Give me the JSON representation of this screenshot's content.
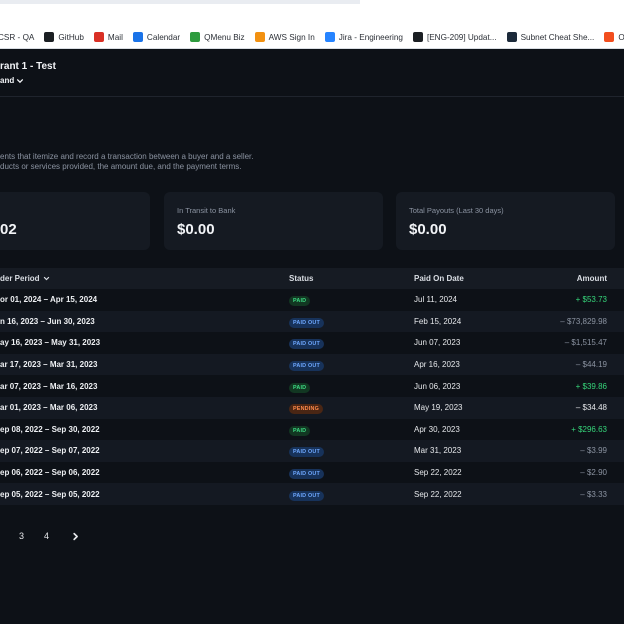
{
  "bookmarks": [
    {
      "label": "CSR - QA",
      "icon": "bookmark-icon",
      "color": "#2b2f36"
    },
    {
      "label": "GitHub",
      "icon": "github-icon",
      "color": "#1b1f23"
    },
    {
      "label": "Mail",
      "icon": "gmail-icon",
      "color": "#d93025"
    },
    {
      "label": "Calendar",
      "icon": "calendar-icon",
      "color": "#1a73e8"
    },
    {
      "label": "QMenu Biz",
      "icon": "qmenu-icon",
      "color": "#2e9b3e"
    },
    {
      "label": "AWS Sign In",
      "icon": "aws-icon",
      "color": "#f29111"
    },
    {
      "label": "Jira - Engineering",
      "icon": "jira-icon",
      "color": "#2684ff"
    },
    {
      "label": "[ENG-209] Updat...",
      "icon": "github-icon",
      "color": "#1b1f23"
    },
    {
      "label": "Subnet Cheat She...",
      "icon": "subnet-icon",
      "color": "#1c2a3a"
    },
    {
      "label": "Owner App",
      "icon": "figma-icon",
      "color": "#f24e1e"
    }
  ],
  "header": {
    "merchant": "rant 1 - Test",
    "brand": "and"
  },
  "description": {
    "line1": "ents that itemize and record a transaction between a buyer and a seller.",
    "line2": "ducts or services provided, the amount due, and the payment terms."
  },
  "cards": [
    {
      "label": "",
      "value": "02"
    },
    {
      "label": "In Transit to Bank",
      "value": "$0.00"
    },
    {
      "label": "Total Payouts (Last 30 days)",
      "value": "$0.00"
    }
  ],
  "table": {
    "columns": {
      "period": "der Period",
      "status": "Status",
      "paid_on": "Paid On Date",
      "amount": "Amount"
    },
    "rows": [
      {
        "period": "or 01, 2024 – Apr 15, 2024",
        "status": "PAID",
        "status_type": "paid",
        "paid_on": "Jul 11, 2024",
        "amount": "+ $53.73",
        "amount_type": "pos"
      },
      {
        "period": "n 16, 2023 – Jun 30, 2023",
        "status": "PAID OUT",
        "status_type": "paidout",
        "paid_on": "Feb 15, 2024",
        "amount": "– $73,829.98",
        "amount_type": "neg"
      },
      {
        "period": "ay 16, 2023 – May 31, 2023",
        "status": "PAID OUT",
        "status_type": "paidout",
        "paid_on": "Jun 07, 2023",
        "amount": "– $1,515.47",
        "amount_type": "neg"
      },
      {
        "period": "ar 17, 2023 – Mar 31, 2023",
        "status": "PAID OUT",
        "status_type": "paidout",
        "paid_on": "Apr 16, 2023",
        "amount": "– $44.19",
        "amount_type": "neg"
      },
      {
        "period": "ar 07, 2023 – Mar 16, 2023",
        "status": "PAID",
        "status_type": "paid",
        "paid_on": "Jun 06, 2023",
        "amount": "+ $39.86",
        "amount_type": "pos"
      },
      {
        "period": "ar 01, 2023 – Mar 06, 2023",
        "status": "PENDING",
        "status_type": "pending",
        "paid_on": "May 19, 2023",
        "amount": "– $34.48",
        "amount_type": "neg-strong"
      },
      {
        "period": "ep 08, 2022 – Sep 30, 2022",
        "status": "PAID",
        "status_type": "paid",
        "paid_on": "Apr 30, 2023",
        "amount": "+ $296.63",
        "amount_type": "pos"
      },
      {
        "period": "ep 07, 2022 – Sep 07, 2022",
        "status": "PAID OUT",
        "status_type": "paidout",
        "paid_on": "Mar 31, 2023",
        "amount": "– $3.99",
        "amount_type": "neg"
      },
      {
        "period": "ep 06, 2022 – Sep 06, 2022",
        "status": "PAID OUT",
        "status_type": "paidout",
        "paid_on": "Sep 22, 2022",
        "amount": "– $2.90",
        "amount_type": "neg"
      },
      {
        "period": "ep 05, 2022 – Sep 05, 2022",
        "status": "PAID OUT",
        "status_type": "paidout",
        "paid_on": "Sep 22, 2022",
        "amount": "– $3.33",
        "amount_type": "neg"
      }
    ]
  },
  "pagination": {
    "pages": [
      "3",
      "4"
    ],
    "next_icon": "chevron-right-icon"
  },
  "colors": {
    "background": "#0d1117",
    "card": "#151a22",
    "positive": "#36d67a",
    "muted": "#8b93a1"
  }
}
